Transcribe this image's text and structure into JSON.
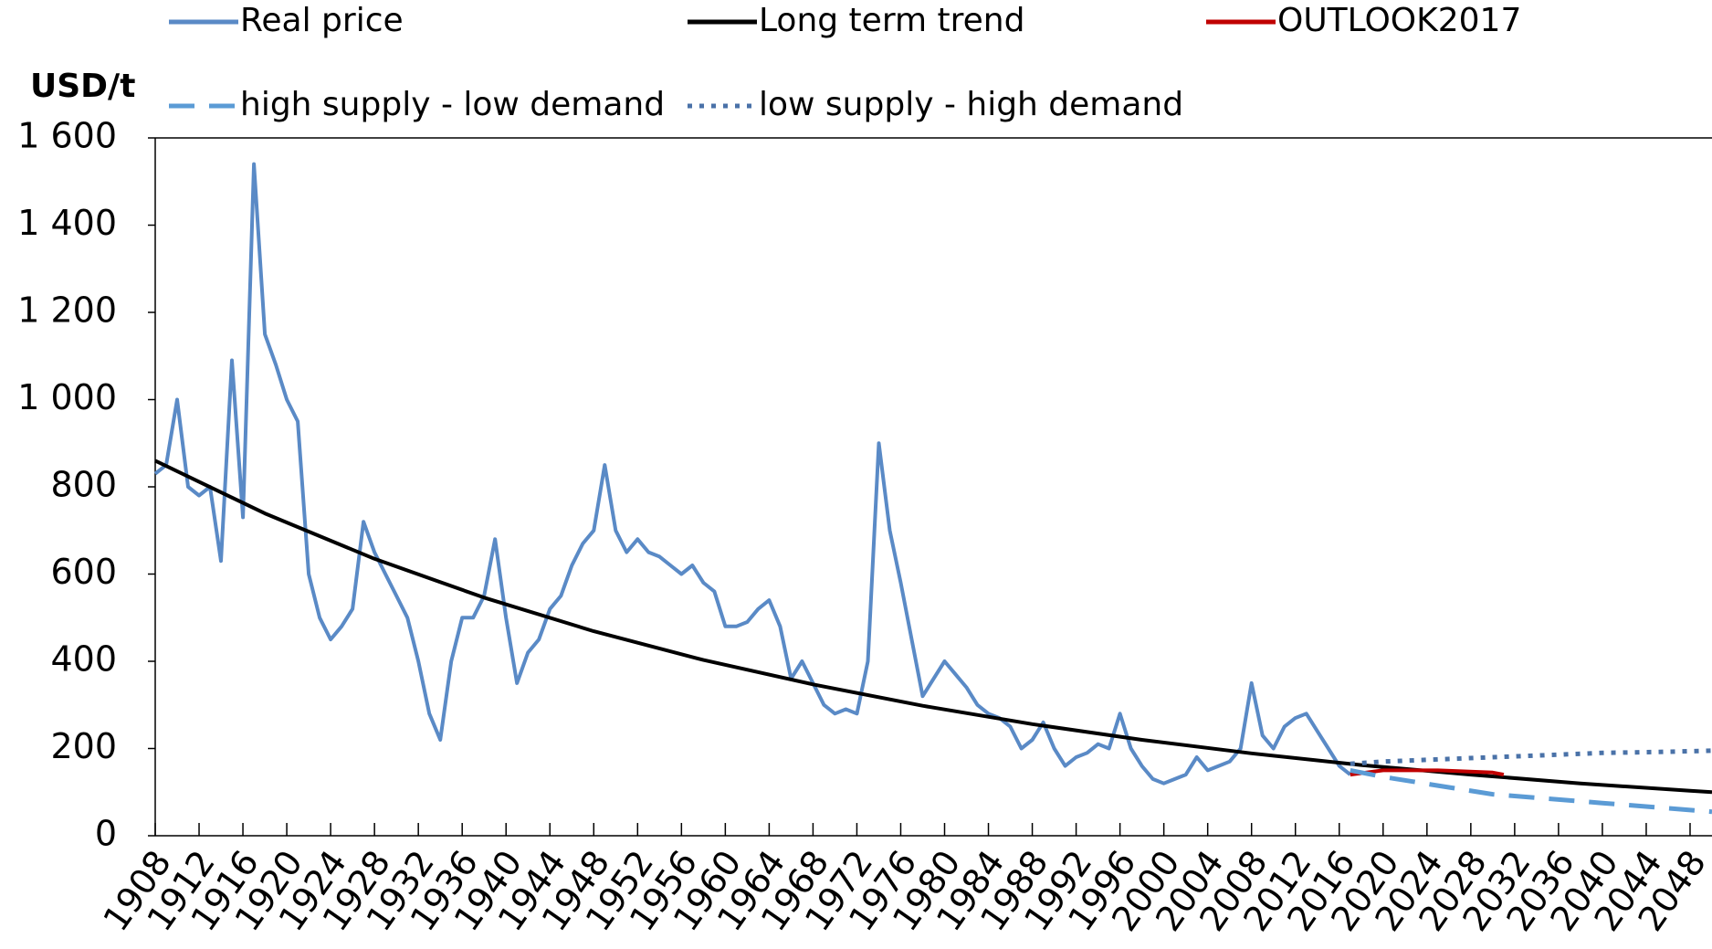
{
  "chart_data": {
    "type": "line",
    "y_label": "USD/t",
    "xlim": [
      1908,
      2050
    ],
    "ylim": [
      0,
      1600
    ],
    "xticks": [
      1908,
      1912,
      1916,
      1920,
      1924,
      1928,
      1932,
      1936,
      1940,
      1944,
      1948,
      1952,
      1956,
      1960,
      1964,
      1968,
      1972,
      1976,
      1980,
      1984,
      1988,
      1992,
      1996,
      2000,
      2004,
      2008,
      2012,
      2016,
      2020,
      2024,
      2028,
      2032,
      2036,
      2040,
      2044,
      2048
    ],
    "yticks": [
      0,
      200,
      400,
      600,
      800,
      {
        "value": 1000,
        "label": "1 000"
      },
      {
        "value": 1200,
        "label": "1 200"
      },
      {
        "value": 1400,
        "label": "1 400"
      },
      {
        "value": 1600,
        "label": "1 600"
      }
    ],
    "grid": false,
    "series": [
      {
        "name": "Real price",
        "color": "#5a8ac6",
        "dash": "solid",
        "x": [
          1908,
          1909,
          1910,
          1911,
          1912,
          1913,
          1914,
          1915,
          1916,
          1917,
          1918,
          1919,
          1920,
          1921,
          1922,
          1923,
          1924,
          1925,
          1926,
          1927,
          1928,
          1929,
          1930,
          1931,
          1932,
          1933,
          1934,
          1935,
          1936,
          1937,
          1938,
          1939,
          1940,
          1941,
          1942,
          1943,
          1944,
          1945,
          1946,
          1947,
          1948,
          1949,
          1950,
          1951,
          1952,
          1953,
          1954,
          1955,
          1956,
          1957,
          1958,
          1959,
          1960,
          1961,
          1962,
          1963,
          1964,
          1965,
          1966,
          1967,
          1968,
          1969,
          1970,
          1971,
          1972,
          1973,
          1974,
          1975,
          1976,
          1977,
          1978,
          1979,
          1980,
          1981,
          1982,
          1983,
          1984,
          1985,
          1986,
          1987,
          1988,
          1989,
          1990,
          1991,
          1992,
          1993,
          1994,
          1995,
          1996,
          1997,
          1998,
          1999,
          2000,
          2001,
          2002,
          2003,
          2004,
          2005,
          2006,
          2007,
          2008,
          2009,
          2010,
          2011,
          2012,
          2013,
          2014,
          2015,
          2016,
          2017
        ],
        "values": [
          830,
          850,
          1000,
          800,
          780,
          800,
          630,
          1090,
          730,
          1540,
          1150,
          1080,
          1000,
          950,
          600,
          500,
          450,
          480,
          520,
          720,
          650,
          600,
          550,
          500,
          400,
          280,
          220,
          400,
          500,
          500,
          550,
          680,
          500,
          350,
          420,
          450,
          520,
          550,
          620,
          670,
          700,
          850,
          700,
          650,
          680,
          650,
          640,
          620,
          600,
          620,
          580,
          560,
          480,
          480,
          490,
          520,
          540,
          480,
          360,
          400,
          350,
          300,
          280,
          290,
          280,
          400,
          900,
          700,
          580,
          450,
          320,
          360,
          400,
          370,
          340,
          300,
          280,
          270,
          250,
          200,
          220,
          260,
          200,
          160,
          180,
          190,
          210,
          200,
          280,
          200,
          160,
          130,
          120,
          130,
          140,
          180,
          150,
          160,
          170,
          200,
          350,
          230,
          200,
          250,
          270,
          280,
          240,
          200,
          160,
          140
        ]
      },
      {
        "name": "Long term trend",
        "color": "#000000",
        "dash": "solid",
        "x": [
          1908,
          1918,
          1928,
          1938,
          1948,
          1958,
          1968,
          1978,
          1988,
          1998,
          2008,
          2018,
          2028,
          2038,
          2048,
          2050
        ],
        "values": [
          860,
          739,
          635,
          546,
          469,
          403,
          347,
          298,
          256,
          220,
          189,
          162,
          140,
          120,
          103,
          100
        ]
      },
      {
        "name": "OUTLOOK2017",
        "color": "#c00000",
        "dash": "solid",
        "x": [
          2017,
          2020,
          2025,
          2030,
          2031
        ],
        "values": [
          140,
          150,
          150,
          145,
          140
        ]
      },
      {
        "name": "high supply - low demand",
        "color": "#5b9bd5",
        "dash": "dashed",
        "x": [
          2017,
          2020,
          2025,
          2030,
          2035,
          2040,
          2045,
          2050
        ],
        "values": [
          150,
          135,
          115,
          95,
          85,
          75,
          65,
          55
        ]
      },
      {
        "name": "low supply - high demand",
        "color": "#4a72a8",
        "dash": "dotted",
        "x": [
          2017,
          2020,
          2025,
          2030,
          2035,
          2040,
          2045,
          2050
        ],
        "values": [
          165,
          170,
          175,
          180,
          185,
          190,
          192,
          195
        ]
      }
    ]
  }
}
